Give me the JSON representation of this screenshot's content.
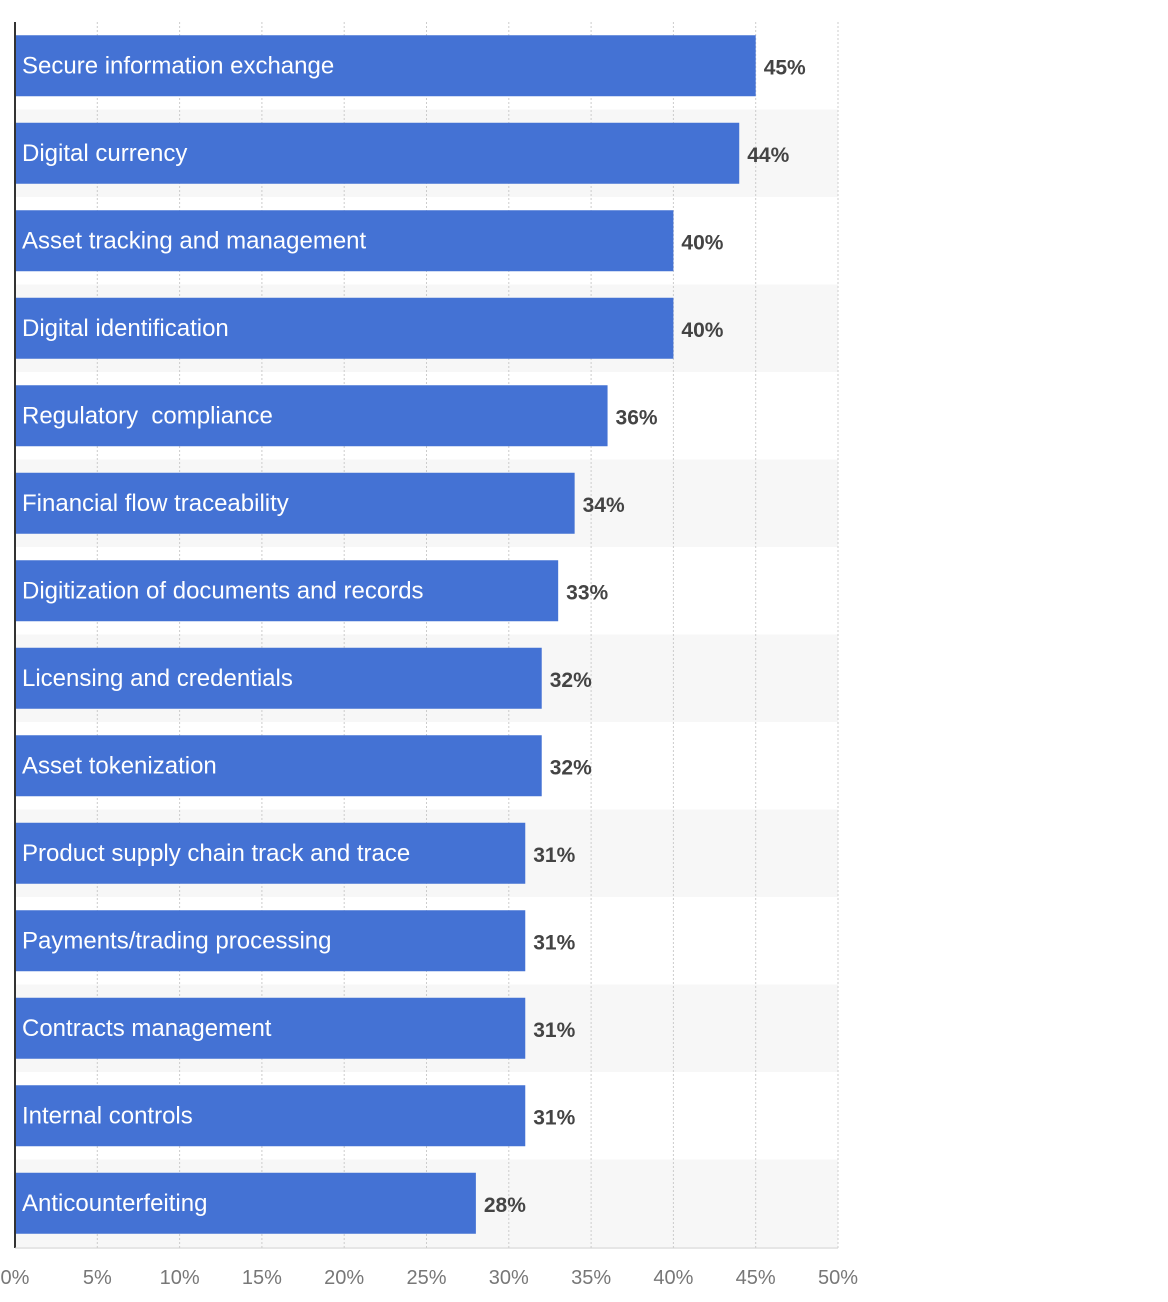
{
  "chart_data": {
    "type": "bar",
    "orientation": "horizontal",
    "title": "",
    "xlabel": "",
    "ylabel": "",
    "categories": [
      "Secure information exchange",
      "Digital currency",
      "Asset tracking and management",
      "Digital identification",
      "Regulatory  compliance",
      "Financial flow traceability",
      "Digitization of documents and records",
      "Licensing and credentials",
      "Asset tokenization",
      "Product supply chain track and trace",
      "Payments/trading processing",
      "Contracts management",
      "Internal controls",
      "Anticounterfeiting"
    ],
    "values": [
      45,
      44,
      40,
      40,
      36,
      34,
      33,
      32,
      32,
      31,
      31,
      31,
      31,
      28
    ],
    "value_labels": [
      "45%",
      "44%",
      "40%",
      "40%",
      "36%",
      "34%",
      "33%",
      "32%",
      "32%",
      "31%",
      "31%",
      "31%",
      "31%",
      "28%"
    ],
    "xlim": [
      0,
      50
    ],
    "ticks": [
      0,
      5,
      10,
      15,
      20,
      25,
      30,
      35,
      40,
      45,
      50
    ],
    "tick_labels": [
      "0%",
      "5%",
      "10%",
      "15%",
      "20%",
      "25%",
      "30%",
      "35%",
      "40%",
      "45%",
      "50%"
    ],
    "grid": true,
    "legend": "none",
    "colors": {
      "bar": "#4472d4",
      "band": "#f7f7f7",
      "grid": "#cccccc",
      "axis": "#333333",
      "value_text": "#444444",
      "tick_text": "#777777",
      "bar_text": "#ffffff"
    }
  }
}
